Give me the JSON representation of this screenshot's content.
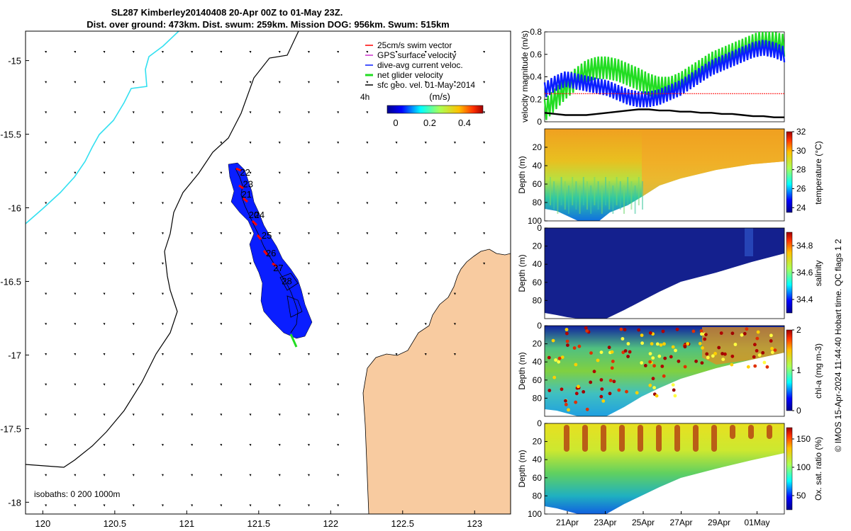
{
  "title": {
    "line1": "SL287 Kimberley20140408 20-Apr 00Z to 01-May 23Z.",
    "line2": "Dist. over ground: 473km. Dist. swum: 259km. Mission DOG: 956km. Swum: 515km"
  },
  "credit": "© IMOS 15-Apr-2024 11:44:40 Hobart time. QC flags 1 2",
  "colors": {
    "land": "#F8CBA0",
    "track_blue": "#0A1EFF",
    "swim_red": "#FF0000",
    "glider_green": "#22DD22",
    "sfc_black": "#000000",
    "coast_cyan": "#33E0F0"
  },
  "chart_data": [
    {
      "type": "map",
      "name": "track-map",
      "lon_ticks": [
        "120",
        "120.5",
        "121",
        "121.5",
        "122",
        "122.5",
        "123"
      ],
      "lat_ticks": [
        "-15",
        "-15.5",
        "-16",
        "-16.5",
        "-17",
        "-17.5",
        "-18"
      ],
      "xlim": [
        119.88,
        123.25
      ],
      "ylim": [
        -18.08,
        -14.8
      ],
      "legend": {
        "placement": "top-right",
        "items": [
          {
            "label": "25cm/s swim vector",
            "color": "#FF0000"
          },
          {
            "label": "GPS surface velocity",
            "color": "#CC33CC"
          },
          {
            "label": "dive-avg current veloc.",
            "color": "#0A1EFF"
          },
          {
            "label": "net glider velocity",
            "color": "#22DD22"
          },
          {
            "label": "sfc geo. vel. 01-May-2014",
            "color": "#000000"
          }
        ]
      },
      "colorbar": {
        "label": "(m/s)",
        "side_text": "4h",
        "ticks": [
          "0",
          "0.2",
          "0.4"
        ],
        "range": [
          -0.05,
          0.5
        ]
      },
      "day_labels": [
        {
          "text": "22",
          "lon": 121.37,
          "lat": -15.78
        },
        {
          "text": "23",
          "lon": 121.39,
          "lat": -15.86
        },
        {
          "text": "21",
          "lon": 121.38,
          "lat": -15.93
        },
        {
          "text": "20",
          "lon": 121.43,
          "lat": -16.07
        },
        {
          "text": "24",
          "lon": 121.47,
          "lat": -16.07
        },
        {
          "text": "25",
          "lon": 121.52,
          "lat": -16.21
        },
        {
          "text": "26",
          "lon": 121.55,
          "lat": -16.33
        },
        {
          "text": "27",
          "lon": 121.6,
          "lat": -16.43
        },
        {
          "text": "28",
          "lon": 121.66,
          "lat": -16.52
        }
      ],
      "isobath_label": "isobaths: 0   200  1000m"
    },
    {
      "type": "line",
      "name": "velocity-magnitude",
      "ylabel": "velocity magnitude (m/s)",
      "ylim": [
        0,
        0.8
      ],
      "yticks": [
        "0",
        "0.2",
        "0.4",
        "0.6",
        "0.8"
      ],
      "series": [
        {
          "name": "net glider velocity",
          "color": "#22DD22",
          "values": [
            0.1,
            0.2,
            0.3,
            0.38,
            0.45,
            0.48,
            0.48,
            0.46,
            0.42,
            0.38,
            0.33,
            0.3,
            0.3,
            0.34,
            0.4,
            0.46,
            0.52,
            0.56,
            0.6,
            0.64,
            0.68,
            0.72,
            0.7,
            0.68
          ]
        },
        {
          "name": "dive-avg current veloc.",
          "color": "#0A1EFF",
          "values": [
            0.28,
            0.34,
            0.38,
            0.36,
            0.34,
            0.32,
            0.3,
            0.26,
            0.22,
            0.2,
            0.2,
            0.22,
            0.26,
            0.3,
            0.36,
            0.42,
            0.48,
            0.52,
            0.56,
            0.6,
            0.64,
            0.66,
            0.64,
            0.6
          ]
        },
        {
          "name": "25cm/s swim vector",
          "color": "#FF0000",
          "values": [
            0.25,
            0.25,
            0.25,
            0.25,
            0.25,
            0.25,
            0.25,
            0.25,
            0.25,
            0.25,
            0.25,
            0.25,
            0.25,
            0.25,
            0.25,
            0.25,
            0.25,
            0.25,
            0.25,
            0.25,
            0.25,
            0.25,
            0.25,
            0.25
          ]
        },
        {
          "name": "sfc geo. vel. 01-May-2014",
          "color": "#000000",
          "values": [
            0.08,
            0.07,
            0.06,
            0.06,
            0.06,
            0.07,
            0.08,
            0.09,
            0.1,
            0.11,
            0.11,
            0.1,
            0.1,
            0.09,
            0.09,
            0.08,
            0.08,
            0.07,
            0.07,
            0.06,
            0.05,
            0.05,
            0.04,
            0.04
          ]
        }
      ]
    },
    {
      "type": "heatmap",
      "name": "temperature-section",
      "ylabel": "Depth (m)",
      "clabel": "temperature (°C)",
      "yticks": [
        "20",
        "40",
        "60",
        "80",
        "100"
      ],
      "ylim": [
        100,
        0
      ],
      "cticks": [
        "24",
        "26",
        "28",
        "30",
        "32"
      ],
      "crange": [
        23.5,
        32
      ]
    },
    {
      "type": "heatmap",
      "name": "salinity-section",
      "ylabel": "Depth (m)",
      "clabel": "salinity",
      "yticks": [
        "0",
        "20",
        "40",
        "60",
        "80"
      ],
      "ylim": [
        100,
        0
      ],
      "cticks": [
        "34.4",
        "34.6",
        "34.8"
      ],
      "crange": [
        34.3,
        34.9
      ]
    },
    {
      "type": "heatmap",
      "name": "chla-section",
      "ylabel": "Depth (m)",
      "clabel": "chl-a (mg m-3)",
      "yticks": [
        "0",
        "20",
        "40",
        "60",
        "80"
      ],
      "ylim": [
        100,
        0
      ],
      "cticks": [
        "0",
        "1",
        "2"
      ],
      "crange": [
        0,
        2
      ]
    },
    {
      "type": "heatmap",
      "name": "oxygen-section",
      "ylabel": "Depth (m)",
      "clabel": "Ox. sat. ratio (%)",
      "yticks": [
        "0",
        "20",
        "40",
        "60",
        "80",
        "100"
      ],
      "ylim": [
        100,
        0
      ],
      "cticks": [
        "50",
        "100",
        "150"
      ],
      "crange": [
        25,
        170
      ],
      "xticks": [
        "21Apr",
        "23Apr",
        "25Apr",
        "27Apr",
        "29Apr",
        "01May"
      ]
    }
  ]
}
